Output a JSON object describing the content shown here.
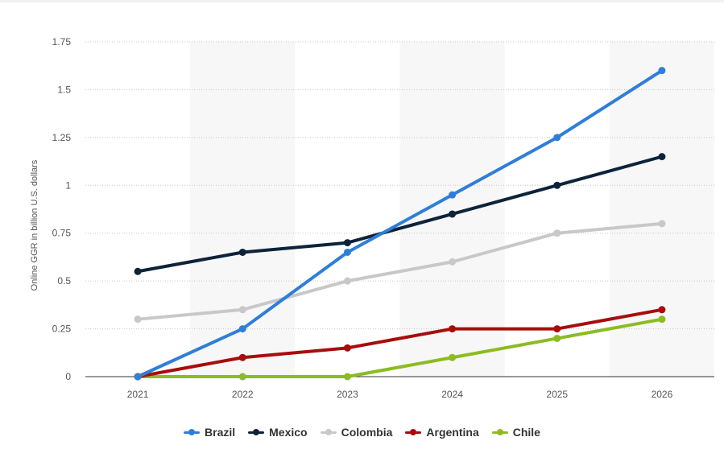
{
  "chart_data": {
    "type": "line",
    "title": "",
    "xlabel": "",
    "ylabel": "Online GGR in billion U.S. dollars",
    "categories": [
      "2021",
      "2022",
      "2023",
      "2024",
      "2025",
      "2026"
    ],
    "yticks": [
      "0",
      "0.25",
      "0.5",
      "0.75",
      "1",
      "1.25",
      "1.5",
      "1.75"
    ],
    "ylim": [
      0,
      1.75
    ],
    "grid": true,
    "legend_position": "bottom",
    "series": [
      {
        "name": "Brazil",
        "color": "#2f7ed8",
        "values": [
          0,
          0.25,
          0.65,
          0.95,
          1.25,
          1.6
        ]
      },
      {
        "name": "Mexico",
        "color": "#0d233a",
        "values": [
          0.55,
          0.65,
          0.7,
          0.85,
          1.0,
          1.15
        ]
      },
      {
        "name": "Colombia",
        "color": "#c8c8c8",
        "values": [
          0.3,
          0.35,
          0.5,
          0.6,
          0.75,
          0.8
        ]
      },
      {
        "name": "Argentina",
        "color": "#a80c0c",
        "values": [
          0,
          0.1,
          0.15,
          0.25,
          0.25,
          0.35
        ]
      },
      {
        "name": "Chile",
        "color": "#8bbc21",
        "values": [
          0,
          0,
          0,
          0.1,
          0.2,
          0.3
        ]
      }
    ]
  }
}
